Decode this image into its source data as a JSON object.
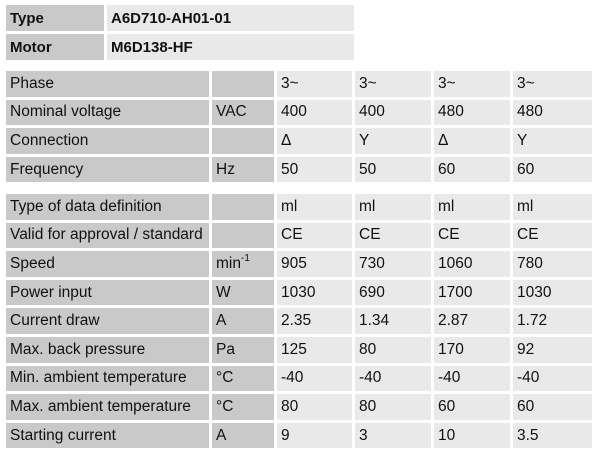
{
  "header": [
    {
      "label": "Type",
      "value": "A6D710-AH01-01"
    },
    {
      "label": "Motor",
      "value": "M6D138-HF"
    }
  ],
  "section1": [
    {
      "label": "Phase",
      "unit": "",
      "values": [
        "3~",
        "3~",
        "3~",
        "3~"
      ]
    },
    {
      "label": "Nominal voltage",
      "unit": "VAC",
      "values": [
        "400",
        "400",
        "480",
        "480"
      ]
    },
    {
      "label": "Connection",
      "unit": "",
      "values": [
        "Δ",
        "Y",
        "Δ",
        "Y"
      ]
    },
    {
      "label": "Frequency",
      "unit": "Hz",
      "values": [
        "50",
        "50",
        "60",
        "60"
      ]
    }
  ],
  "section2": [
    {
      "label": "Type of data definition",
      "unit": "",
      "values": [
        "ml",
        "ml",
        "ml",
        "ml"
      ]
    },
    {
      "label": "Valid for approval / standard",
      "unit": "",
      "values": [
        "CE",
        "CE",
        "CE",
        "CE"
      ]
    },
    {
      "label": "Speed",
      "unit": "min",
      "unit_sup": "-1",
      "values": [
        "905",
        "730",
        "1060",
        "780"
      ]
    },
    {
      "label": "Power input",
      "unit": "W",
      "values": [
        "1030",
        "690",
        "1700",
        "1030"
      ]
    },
    {
      "label": "Current draw",
      "unit": "A",
      "values": [
        "2.35",
        "1.34",
        "2.87",
        "1.72"
      ]
    },
    {
      "label": "Max. back pressure",
      "unit": "Pa",
      "values": [
        "125",
        "80",
        "170",
        "92"
      ]
    },
    {
      "label": "Min. ambient temperature",
      "unit": "°C",
      "values": [
        "-40",
        "-40",
        "-40",
        "-40"
      ]
    },
    {
      "label": "Max. ambient temperature",
      "unit": "°C",
      "values": [
        "80",
        "80",
        "60",
        "60"
      ]
    },
    {
      "label": "Starting current",
      "unit": "A",
      "values": [
        "9",
        "3",
        "10",
        "3.5"
      ]
    }
  ]
}
